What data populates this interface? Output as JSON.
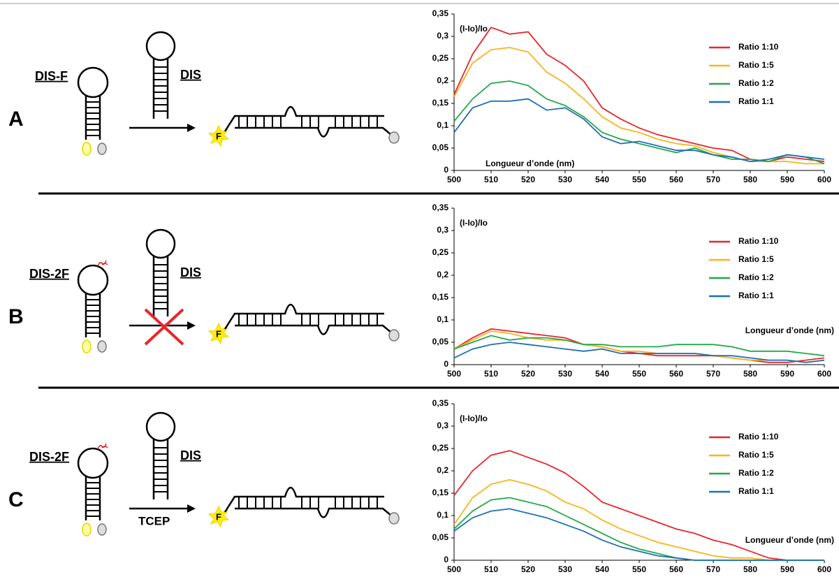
{
  "diagrams": [
    {
      "letter": "A",
      "probe": "DIS-F",
      "target": "DIS",
      "fluor": "F"
    },
    {
      "letter": "B",
      "probe": "DIS-2F",
      "target": "DIS",
      "fluor": "F"
    },
    {
      "letter": "C",
      "probe": "DIS-2F",
      "target": "DIS",
      "fluor": "F",
      "reagent": "TCEP"
    }
  ],
  "chart_data": [
    {
      "type": "line",
      "ylabel": "(I-Io)/Io",
      "xlabel": "Longueur d’onde (nm)",
      "x": [
        500,
        505,
        510,
        515,
        520,
        525,
        530,
        535,
        540,
        545,
        550,
        555,
        560,
        565,
        570,
        575,
        580,
        585,
        590,
        595,
        600
      ],
      "xlim": [
        500,
        600
      ],
      "xticks": [
        500,
        510,
        520,
        530,
        540,
        550,
        560,
        570,
        580,
        590,
        600
      ],
      "ylim": [
        0,
        0.35
      ],
      "yticks": [
        0,
        {
          "value": 0.05,
          "label": "0,05"
        },
        {
          "value": 0.1,
          "label": "0,1"
        },
        {
          "value": 0.15,
          "label": "0,15"
        },
        {
          "value": 0.2,
          "label": "0,2"
        },
        {
          "value": 0.25,
          "label": "0,25"
        },
        {
          "value": 0.3,
          "label": "0,3"
        },
        {
          "value": 0.35,
          "label": "0,35"
        }
      ],
      "series": [
        {
          "name": "Ratio 1:10",
          "color": "#e8262b",
          "values": [
            0.17,
            0.26,
            0.32,
            0.305,
            0.31,
            0.26,
            0.235,
            0.2,
            0.14,
            0.115,
            0.095,
            0.08,
            0.07,
            0.06,
            0.05,
            0.045,
            0.025,
            0.02,
            0.03,
            0.025,
            0.02
          ]
        },
        {
          "name": "Ratio 1:5",
          "color": "#f9b51a",
          "values": [
            0.165,
            0.24,
            0.27,
            0.275,
            0.265,
            0.22,
            0.195,
            0.16,
            0.12,
            0.095,
            0.085,
            0.07,
            0.06,
            0.055,
            0.04,
            0.03,
            0.02,
            0.02,
            0.02,
            0.015,
            0.015
          ]
        },
        {
          "name": "Ratio 1:2",
          "color": "#22a84a",
          "values": [
            0.11,
            0.16,
            0.195,
            0.2,
            0.19,
            0.16,
            0.145,
            0.12,
            0.085,
            0.07,
            0.06,
            0.05,
            0.04,
            0.05,
            0.035,
            0.025,
            0.025,
            0.02,
            0.035,
            0.03,
            0.015
          ]
        },
        {
          "name": "Ratio 1:1",
          "color": "#1f6fb5",
          "values": [
            0.085,
            0.14,
            0.155,
            0.155,
            0.16,
            0.135,
            0.14,
            0.115,
            0.075,
            0.06,
            0.065,
            0.055,
            0.045,
            0.045,
            0.035,
            0.03,
            0.02,
            0.025,
            0.035,
            0.03,
            0.025
          ]
        }
      ]
    },
    {
      "type": "line",
      "ylabel": "(I-Io)/Io",
      "xlabel": "Longueur d’onde (nm)",
      "x": [
        500,
        505,
        510,
        515,
        520,
        525,
        530,
        535,
        540,
        545,
        550,
        555,
        560,
        565,
        570,
        575,
        580,
        585,
        590,
        595,
        600
      ],
      "xlim": [
        500,
        600
      ],
      "xticks": [
        500,
        510,
        520,
        530,
        540,
        550,
        560,
        570,
        580,
        590,
        600
      ],
      "ylim": [
        0,
        0.35
      ],
      "yticks": [
        0,
        {
          "value": 0.05,
          "label": "0,05"
        },
        {
          "value": 0.1,
          "label": "0,1"
        },
        {
          "value": 0.15,
          "label": "0,15"
        },
        {
          "value": 0.2,
          "label": "0,2"
        },
        {
          "value": 0.25,
          "label": "0,25"
        },
        {
          "value": 0.3,
          "label": "0,3"
        },
        {
          "value": 0.35,
          "label": "0,35"
        }
      ],
      "series": [
        {
          "name": "Ratio 1:10",
          "color": "#e8262b",
          "values": [
            0.035,
            0.06,
            0.08,
            0.075,
            0.07,
            0.065,
            0.06,
            0.045,
            0.04,
            0.03,
            0.025,
            0.02,
            0.02,
            0.02,
            0.02,
            0.015,
            0.01,
            0.005,
            0.005,
            0.01,
            0.015
          ]
        },
        {
          "name": "Ratio 1:5",
          "color": "#f9b51a",
          "values": [
            0.035,
            0.055,
            0.075,
            0.07,
            0.06,
            0.055,
            0.055,
            0.045,
            0.04,
            0.03,
            0.03,
            0.025,
            0.025,
            0.025,
            0.02,
            0.015,
            0.01,
            0.01,
            0.01,
            0.005,
            0.01
          ]
        },
        {
          "name": "Ratio 1:2",
          "color": "#22a84a",
          "values": [
            0.035,
            0.05,
            0.065,
            0.055,
            0.06,
            0.06,
            0.055,
            0.045,
            0.045,
            0.04,
            0.04,
            0.04,
            0.045,
            0.045,
            0.045,
            0.04,
            0.03,
            0.03,
            0.03,
            0.025,
            0.02
          ]
        },
        {
          "name": "Ratio 1:1",
          "color": "#1f6fb5",
          "values": [
            0.015,
            0.035,
            0.045,
            0.05,
            0.045,
            0.04,
            0.035,
            0.03,
            0.035,
            0.025,
            0.025,
            0.025,
            0.025,
            0.025,
            0.02,
            0.02,
            0.015,
            0.01,
            0.01,
            0.005,
            0.01
          ]
        }
      ]
    },
    {
      "type": "line",
      "ylabel": "(I-Io)/Io",
      "xlabel": "Longueur d’onde (nm)",
      "x": [
        500,
        505,
        510,
        515,
        520,
        525,
        530,
        535,
        540,
        545,
        550,
        555,
        560,
        565,
        570,
        575,
        580,
        585,
        590,
        595,
        600
      ],
      "xlim": [
        500,
        600
      ],
      "xticks": [
        500,
        510,
        520,
        530,
        540,
        550,
        560,
        570,
        580,
        590,
        600
      ],
      "ylim": [
        0,
        0.35
      ],
      "yticks": [
        0,
        {
          "value": 0.05,
          "label": "0,05"
        },
        {
          "value": 0.1,
          "label": "0,1"
        },
        {
          "value": 0.15,
          "label": "0,15"
        },
        {
          "value": 0.2,
          "label": "0,2"
        },
        {
          "value": 0.25,
          "label": "0,25"
        },
        {
          "value": 0.3,
          "label": "0,3"
        },
        {
          "value": 0.35,
          "label": "0,35"
        }
      ],
      "series": [
        {
          "name": "Ratio 1:10",
          "color": "#e8262b",
          "values": [
            0.145,
            0.2,
            0.235,
            0.245,
            0.23,
            0.215,
            0.195,
            0.165,
            0.13,
            0.115,
            0.1,
            0.085,
            0.07,
            0.06,
            0.045,
            0.035,
            0.02,
            0.005,
            0,
            0,
            0
          ]
        },
        {
          "name": "Ratio 1:5",
          "color": "#f9b51a",
          "values": [
            0.08,
            0.14,
            0.17,
            0.18,
            0.17,
            0.155,
            0.13,
            0.115,
            0.09,
            0.07,
            0.055,
            0.04,
            0.03,
            0.02,
            0.01,
            0.005,
            0.005,
            0,
            0,
            0,
            0
          ]
        },
        {
          "name": "Ratio 1:2",
          "color": "#22a84a",
          "values": [
            0.07,
            0.11,
            0.135,
            0.14,
            0.13,
            0.12,
            0.1,
            0.08,
            0.06,
            0.04,
            0.025,
            0.015,
            0.005,
            0,
            0,
            0,
            0,
            0,
            0,
            0,
            0
          ]
        },
        {
          "name": "Ratio 1:1",
          "color": "#1f6fb5",
          "values": [
            0.065,
            0.095,
            0.11,
            0.115,
            0.105,
            0.095,
            0.08,
            0.065,
            0.045,
            0.03,
            0.02,
            0.01,
            0.005,
            0,
            0,
            0,
            0,
            0,
            0,
            0,
            0
          ]
        }
      ]
    }
  ]
}
